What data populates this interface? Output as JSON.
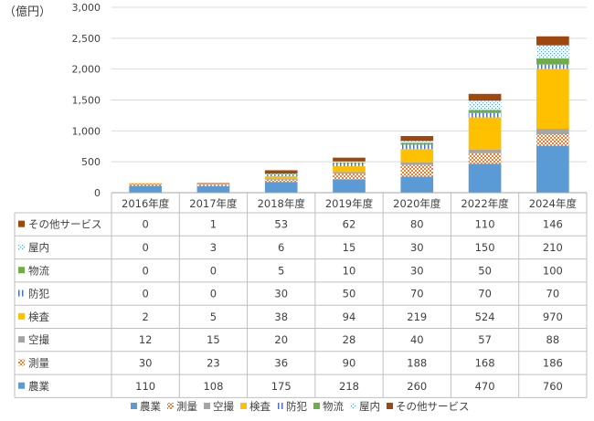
{
  "chart_data": {
    "type": "bar",
    "stacked": true,
    "unit_label": "（億円）",
    "categories": [
      "2016年度",
      "2017年度",
      "2018年度",
      "2019年度",
      "2020年度",
      "2022年度",
      "2024年度"
    ],
    "y_ticks": [
      "0",
      "500",
      "1,000",
      "1,500",
      "2,000",
      "2,500",
      "3,000"
    ],
    "ylim": [
      0,
      3000
    ],
    "grid": true,
    "legend_position": "bottom",
    "series": [
      {
        "name": "農業",
        "color": "#5B9BD5",
        "pattern": "solid",
        "values": [
          110,
          108,
          175,
          218,
          260,
          470,
          760
        ]
      },
      {
        "name": "測量",
        "color": "#ED7D31",
        "pattern": "check",
        "values": [
          30,
          23,
          36,
          90,
          188,
          168,
          186
        ]
      },
      {
        "name": "空撮",
        "color": "#A5A5A5",
        "pattern": "solid",
        "values": [
          12,
          15,
          20,
          28,
          40,
          57,
          88
        ]
      },
      {
        "name": "検査",
        "color": "#FFC000",
        "pattern": "solid",
        "values": [
          2,
          5,
          38,
          94,
          219,
          524,
          970
        ]
      },
      {
        "name": "防犯",
        "color": "#4472C4",
        "pattern": "vlines",
        "values": [
          0,
          0,
          30,
          50,
          70,
          70,
          70
        ]
      },
      {
        "name": "物流",
        "color": "#70AD47",
        "pattern": "solid",
        "values": [
          0,
          0,
          5,
          10,
          30,
          50,
          100
        ]
      },
      {
        "name": "屋内",
        "color": "#5B9BD5",
        "pattern": "dots",
        "values": [
          0,
          3,
          6,
          15,
          30,
          150,
          210
        ]
      },
      {
        "name": "その他サービス",
        "color": "#9E480E",
        "pattern": "solid",
        "values": [
          0,
          1,
          53,
          62,
          80,
          110,
          146
        ]
      }
    ]
  }
}
